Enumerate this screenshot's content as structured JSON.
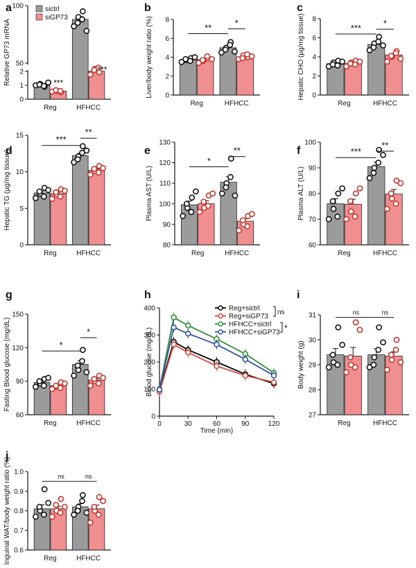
{
  "colors": {
    "sictrl": "#9b9b9b",
    "siGP73": "#f08f8f",
    "siGP73_dot": "#c9342e",
    "line_black": "#000000",
    "line_red": "#d9443a",
    "line_green": "#2f8f3a",
    "line_blue": "#2e4ea3"
  },
  "chart_data": [
    {
      "id": "a",
      "type": "bar",
      "letter": "a",
      "ylabel": "Relative GP73 mRNA",
      "categories": [
        "Reg",
        "HFHCC"
      ],
      "legend": [
        "sictrl",
        "siGP73"
      ],
      "axis_breaks": true,
      "ylim": [
        0,
        2,
        50,
        100
      ],
      "yticks": [
        "0",
        "1",
        "2",
        "50",
        "100"
      ],
      "series": [
        {
          "name": "sictrl",
          "values": [
            1.0,
            88
          ],
          "points": [
            [
              1.0,
              1.1,
              0.9,
              1.05,
              0.95,
              1.2
            ],
            [
              82,
              90,
              95,
              85,
              88,
              78
            ]
          ]
        },
        {
          "name": "siGP73",
          "values": [
            0.58,
            43
          ],
          "points": [
            [
              0.55,
              0.6,
              0.5,
              0.65,
              0.6
            ],
            [
              40,
              45,
              42,
              44,
              46
            ]
          ]
        }
      ],
      "sig_labels": [
        "***",
        "***"
      ]
    },
    {
      "id": "b",
      "type": "bar",
      "letter": "b",
      "ylabel": "Liver/body weight ratio (%)",
      "categories": [
        "Reg",
        "HFHCC"
      ],
      "ylim": [
        0,
        8
      ],
      "yticks": [
        "0",
        "2",
        "4",
        "6",
        "8"
      ],
      "series": [
        {
          "name": "sictrl",
          "values": [
            3.75,
            5.0
          ],
          "points": [
            [
              3.5,
              3.7,
              3.9,
              3.8,
              3.6,
              4.0
            ],
            [
              4.5,
              5.0,
              5.6,
              4.8,
              5.3,
              4.6
            ]
          ]
        },
        {
          "name": "siGP73",
          "values": [
            3.75,
            4.0
          ],
          "points": [
            [
              3.4,
              3.6,
              3.9,
              3.7,
              4.1,
              3.8
            ],
            [
              3.8,
              4.2,
              4.0,
              3.9,
              4.3,
              4.1
            ]
          ]
        }
      ],
      "brackets": [
        {
          "from": [
            0,
            0
          ],
          "to": [
            1,
            0
          ],
          "y": 6.5,
          "label": "**"
        },
        {
          "from": [
            1,
            0
          ],
          "to": [
            1,
            1
          ],
          "y": 7.0,
          "label": "*"
        }
      ]
    },
    {
      "id": "c",
      "type": "bar",
      "letter": "c",
      "ylabel": "Hepatic CHO (µg/mg tissue)",
      "categories": [
        "Reg",
        "HFHCC"
      ],
      "ylim": [
        0,
        8
      ],
      "yticks": [
        "0",
        "2",
        "4",
        "6",
        "8"
      ],
      "series": [
        {
          "name": "sictrl",
          "values": [
            3.3,
            5.3
          ],
          "points": [
            [
              3.0,
              3.4,
              3.6,
              3.2,
              3.1,
              3.5
            ],
            [
              4.7,
              5.4,
              6.1,
              5.0,
              5.6,
              5.2
            ]
          ]
        },
        {
          "name": "siGP73",
          "values": [
            3.3,
            4.2
          ],
          "points": [
            [
              3.0,
              3.4,
              3.6,
              3.3,
              3.2,
              3.5
            ],
            [
              3.5,
              4.0,
              4.6,
              4.1,
              4.4,
              3.8
            ]
          ]
        }
      ],
      "brackets": [
        {
          "from": [
            0,
            0
          ],
          "to": [
            1,
            0
          ],
          "y": 6.4,
          "label": "***"
        },
        {
          "from": [
            1,
            0
          ],
          "to": [
            1,
            1
          ],
          "y": 6.9,
          "label": "*"
        }
      ]
    },
    {
      "id": "d",
      "type": "bar",
      "letter": "d",
      "ylabel": "Hepatic TG (µg/mg tissue)",
      "categories": [
        "Reg",
        "HFHCC"
      ],
      "ylim": [
        0,
        15
      ],
      "yticks": [
        "0",
        "5",
        "10",
        "15"
      ],
      "series": [
        {
          "name": "sictrl",
          "values": [
            7.1,
            12.2
          ],
          "points": [
            [
              6.4,
              7.0,
              7.8,
              7.3,
              6.6,
              7.5
            ],
            [
              11.3,
              12.1,
              13.5,
              11.7,
              12.6,
              12.9
            ]
          ]
        },
        {
          "name": "siGP73",
          "values": [
            7.0,
            10.2
          ],
          "points": [
            [
              6.3,
              6.9,
              7.6,
              7.2,
              6.6,
              7.4
            ],
            [
              9.6,
              10.1,
              10.8,
              10.4,
              9.9,
              10.5
            ]
          ]
        }
      ],
      "brackets": [
        {
          "from": [
            0,
            0
          ],
          "to": [
            1,
            0
          ],
          "y": 13.6,
          "label": "***"
        },
        {
          "from": [
            1,
            0
          ],
          "to": [
            1,
            1
          ],
          "y": 14.6,
          "label": "**"
        }
      ]
    },
    {
      "id": "e",
      "type": "bar",
      "letter": "e",
      "ylabel": "Plasma AST (U/L)",
      "categories": [
        "Reg",
        "HFHCC"
      ],
      "ylim": [
        80,
        130
      ],
      "yticks": [
        "80",
        "90",
        "100",
        "110",
        "120",
        "130"
      ],
      "series": [
        {
          "name": "sictrl",
          "values": [
            99.5,
            110.5
          ],
          "points": [
            [
              94,
              98,
              103,
              100,
              96,
              106
            ],
            [
              105,
              110,
              122,
              108,
              113,
              104
            ]
          ]
        },
        {
          "name": "siGP73",
          "values": [
            100.0,
            91.5
          ],
          "points": [
            [
              96,
              98,
              104,
              101,
              99,
              105
            ],
            [
              87,
              90,
              94,
              92,
              89,
              95
            ]
          ]
        }
      ],
      "brackets": [
        {
          "from": [
            0,
            0
          ],
          "to": [
            1,
            0
          ],
          "y": 118,
          "label": "*"
        },
        {
          "from": [
            1,
            0
          ],
          "to": [
            1,
            1
          ],
          "y": 123,
          "label": "**"
        }
      ]
    },
    {
      "id": "f",
      "type": "bar",
      "letter": "f",
      "ylabel": "Plasma ALT (U/L)",
      "categories": [
        "Reg",
        "HFHCC"
      ],
      "ylim": [
        60,
        100
      ],
      "yticks": [
        "60",
        "70",
        "80",
        "90",
        "100"
      ],
      "series": [
        {
          "name": "sictrl",
          "values": [
            76.0,
            90.5
          ],
          "points": [
            [
              70,
              74,
              80,
              77,
              71,
              82
            ],
            [
              86,
              90,
              97,
              88,
              92,
              95
            ]
          ]
        },
        {
          "name": "siGP73",
          "values": [
            75.8,
            79.8
          ],
          "points": [
            [
              70,
              73,
              80,
              77,
              71,
              82
            ],
            [
              74,
              78,
              85,
              80,
              76,
              84
            ]
          ]
        }
      ],
      "brackets": [
        {
          "from": [
            0,
            0
          ],
          "to": [
            1,
            0
          ],
          "y": 94,
          "label": "***"
        },
        {
          "from": [
            1,
            0
          ],
          "to": [
            1,
            1
          ],
          "y": 96.5,
          "label": "**"
        }
      ]
    },
    {
      "id": "g",
      "type": "bar",
      "letter": "g",
      "ylabel": "Fasting Blood glucose (mg/dL)",
      "categories": [
        "Reg",
        "HFHCC"
      ],
      "ylim": [
        60,
        150
      ],
      "yticks": [
        "60",
        "90",
        "120",
        "150"
      ],
      "series": [
        {
          "name": "sictrl",
          "values": [
            89,
            105
          ],
          "points": [
            [
              85,
              88,
              92,
              90,
              86,
              93
            ],
            [
              95,
              100,
              118,
              104,
              108,
              98
            ]
          ]
        },
        {
          "name": "siGP73",
          "values": [
            86,
            91
          ],
          "points": [
            [
              83,
              85,
              89,
              86,
              84,
              88
            ],
            [
              86,
              90,
              95,
              92,
              88,
              93
            ]
          ]
        }
      ],
      "brackets": [
        {
          "from": [
            0,
            0
          ],
          "to": [
            1,
            0
          ],
          "y": 117,
          "label": "*"
        },
        {
          "from": [
            1,
            0
          ],
          "to": [
            1,
            1
          ],
          "y": 129,
          "label": "*"
        }
      ]
    },
    {
      "id": "h",
      "type": "line",
      "letter": "h",
      "xlabel": "Time (min)",
      "ylabel": "Blood glucose (mg/dL)",
      "x": [
        0,
        15,
        30,
        60,
        90,
        120
      ],
      "xticks": [
        "0",
        "30",
        "60",
        "90",
        "120"
      ],
      "ylim": [
        0,
        400
      ],
      "yticks": [
        "0",
        "100",
        "200",
        "300",
        "400"
      ],
      "series": [
        {
          "name": "Reg+sictrl",
          "values": [
            95,
            275,
            245,
            200,
            155,
            120
          ]
        },
        {
          "name": "Reg+siGP73",
          "values": [
            90,
            265,
            235,
            185,
            150,
            125
          ]
        },
        {
          "name": "HFHCC+sictrl",
          "values": [
            100,
            365,
            335,
            285,
            230,
            160
          ]
        },
        {
          "name": "HFHCC+siGP73",
          "values": [
            98,
            328,
            305,
            265,
            210,
            150
          ]
        }
      ],
      "legend_sig": [
        "ns",
        "*"
      ]
    },
    {
      "id": "i",
      "type": "bar",
      "letter": "i",
      "ylabel": "Body weight (g)",
      "categories": [
        "Reg",
        "HFHCC"
      ],
      "ylim": [
        27,
        31
      ],
      "yticks": [
        "27",
        "28",
        "29",
        "30",
        "31"
      ],
      "series": [
        {
          "name": "sictrl",
          "values": [
            29.4,
            29.4
          ],
          "points": [
            [
              28.9,
              29.1,
              30.5,
              29.4,
              29.0,
              29.8
            ],
            [
              28.9,
              29.3,
              30.5,
              29.0,
              29.6,
              29.9
            ]
          ]
        },
        {
          "name": "siGP73",
          "values": [
            29.35,
            29.35
          ],
          "points": [
            [
              28.7,
              29.0,
              30.7,
              29.3,
              28.9,
              30.4
            ],
            [
              28.8,
              29.2,
              30.0,
              29.4,
              29.6,
              29.1
            ]
          ]
        }
      ],
      "brackets": [
        {
          "from": [
            0,
            0
          ],
          "to": [
            1,
            0
          ],
          "y": 30.9,
          "label": "ns"
        },
        {
          "from": [
            1,
            0
          ],
          "to": [
            1,
            1
          ],
          "y": 30.9,
          "label": "ns"
        }
      ]
    },
    {
      "id": "j",
      "type": "bar",
      "letter": "j",
      "ylabel": "Inguinal WAT/body weight ratio (%)",
      "categories": [
        "Reg",
        "HFHCC"
      ],
      "ylim": [
        0.6,
        1.0
      ],
      "yticks": [
        "0.6",
        "0.7",
        "0.8",
        "0.9",
        "1.0"
      ],
      "series": [
        {
          "name": "sictrl",
          "values": [
            0.81,
            0.82
          ],
          "points": [
            [
              0.77,
              0.8,
              0.91,
              0.82,
              0.78,
              0.84
            ],
            [
              0.78,
              0.82,
              0.88,
              0.8,
              0.85,
              0.79
            ]
          ]
        },
        {
          "name": "siGP73",
          "values": [
            0.81,
            0.81
          ],
          "points": [
            [
              0.77,
              0.8,
              0.86,
              0.83,
              0.79,
              0.82
            ],
            [
              0.74,
              0.8,
              0.87,
              0.82,
              0.78,
              0.85
            ]
          ]
        }
      ],
      "brackets": [
        {
          "from": [
            0,
            0
          ],
          "to": [
            1,
            0
          ],
          "y": 0.95,
          "label": "ns"
        },
        {
          "from": [
            1,
            0
          ],
          "to": [
            1,
            1
          ],
          "y": 0.95,
          "label": "ns"
        }
      ]
    }
  ]
}
